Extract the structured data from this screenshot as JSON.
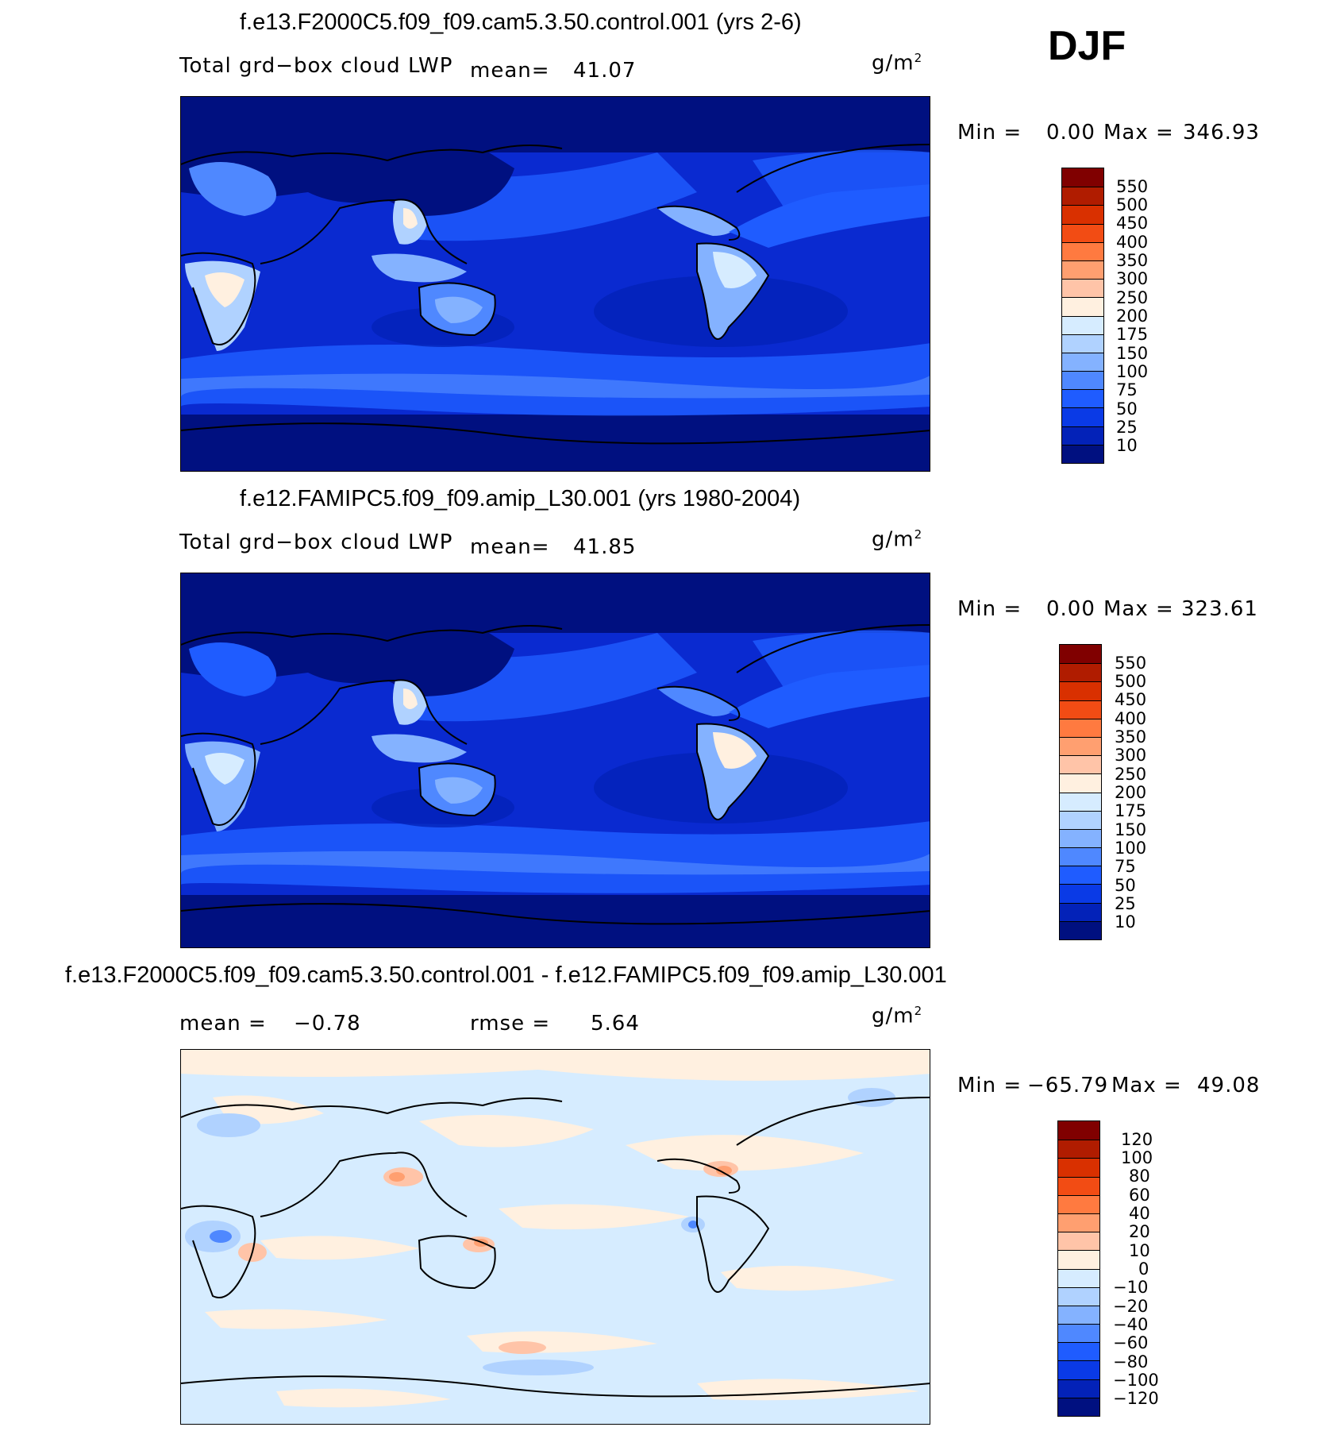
{
  "season": "DJF",
  "panels": [
    {
      "title": "f.e13.F2000C5.f09_f09.cam5.3.50.control.001 (yrs 2-6)",
      "variable": "Total grd−box cloud LWP",
      "mean_label": "mean=",
      "mean_value": "41.07",
      "units": "g/m",
      "units_exp": "2",
      "min_label": "Min  =",
      "min_value": "0.00",
      "max_label": "Max  =",
      "max_value": "346.93",
      "colorbar_ticks": [
        "550",
        "500",
        "450",
        "400",
        "350",
        "300",
        "250",
        "200",
        "175",
        "150",
        "100",
        "75",
        "50",
        "25",
        "10"
      ],
      "colors": [
        "#800000",
        "#b01c00",
        "#d93000",
        "#f24c14",
        "#ff7a40",
        "#ff9f70",
        "#ffc4a8",
        "#fff0e0",
        "#d6ecff",
        "#b0d2ff",
        "#84b2ff",
        "#4f88ff",
        "#1f5cff",
        "#0a3ae6",
        "#0322b8",
        "#001080"
      ]
    },
    {
      "title": "f.e12.FAMIPC5.f09_f09.amip_L30.001 (yrs 1980-2004)",
      "variable": "Total grd−box cloud LWP",
      "mean_label": "mean=",
      "mean_value": "41.85",
      "units": "g/m",
      "units_exp": "2",
      "min_label": "Min  =",
      "min_value": "0.00",
      "max_label": "Max  =",
      "max_value": "323.61",
      "colorbar_ticks": [
        "550",
        "500",
        "450",
        "400",
        "350",
        "300",
        "250",
        "200",
        "175",
        "150",
        "100",
        "75",
        "50",
        "25",
        "10"
      ],
      "colors": [
        "#800000",
        "#b01c00",
        "#d93000",
        "#f24c14",
        "#ff7a40",
        "#ff9f70",
        "#ffc4a8",
        "#fff0e0",
        "#d6ecff",
        "#b0d2ff",
        "#84b2ff",
        "#4f88ff",
        "#1f5cff",
        "#0a3ae6",
        "#0322b8",
        "#001080"
      ]
    },
    {
      "title": "f.e13.F2000C5.f09_f09.cam5.3.50.control.001 - f.e12.FAMIPC5.f09_f09.amip_L30.001",
      "mean_label": "mean  =",
      "mean_value": "−0.78",
      "rmse_label": "rmse  =",
      "rmse_value": "5.64",
      "units": "g/m",
      "units_exp": "2",
      "min_label": "Min  =",
      "min_value": "−65.79",
      "max_label": "Max  =",
      "max_value": "49.08",
      "colorbar_ticks": [
        "120",
        "100",
        "80",
        "60",
        "40",
        "20",
        "10",
        "0",
        "−10",
        "−20",
        "−40",
        "−60",
        "−80",
        "−100",
        "−120"
      ],
      "colors": [
        "#800000",
        "#b01c00",
        "#d93000",
        "#f24c14",
        "#ff7a40",
        "#ff9f70",
        "#ffc4a8",
        "#fff0e0",
        "#d6ecff",
        "#b0d2ff",
        "#84b2ff",
        "#4f88ff",
        "#1f5cff",
        "#0a3ae6",
        "#0322b8",
        "#001080"
      ]
    }
  ]
}
